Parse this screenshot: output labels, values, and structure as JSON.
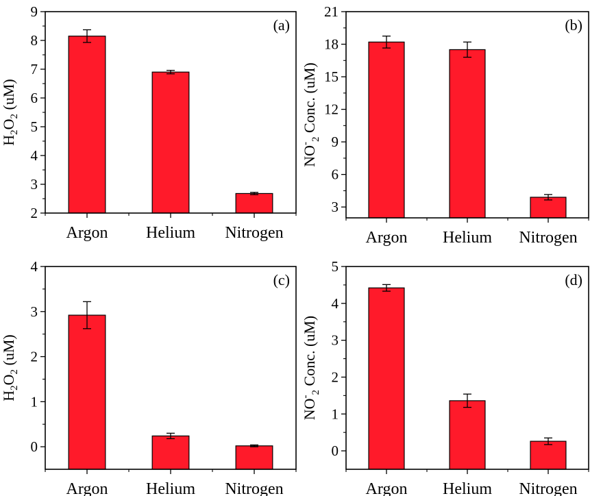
{
  "chart_data": [
    {
      "type": "bar",
      "panel_label": "(a)",
      "categories": [
        "Argon",
        "Helium",
        "Nitrogen"
      ],
      "values": [
        8.15,
        6.9,
        2.68
      ],
      "errors": [
        0.22,
        0.06,
        0.04
      ],
      "ylabel": {
        "base": "H",
        "sub1": "2",
        "mid": "O",
        "sub2": "2",
        "unit": " (uM)"
      },
      "ylim": [
        2,
        9
      ],
      "yticks": [
        2,
        3,
        4,
        5,
        6,
        7,
        8,
        9
      ],
      "bar_color": "#ff1a2a",
      "grid": false
    },
    {
      "type": "bar",
      "panel_label": "(b)",
      "categories": [
        "Argon",
        "Helium",
        "Nitrogen"
      ],
      "values": [
        18.2,
        17.5,
        3.9
      ],
      "errors": [
        0.55,
        0.7,
        0.25
      ],
      "ylabel": {
        "base": "NO",
        "sub1": "2",
        "sup": "-",
        "unit": " Conc. (uM)"
      },
      "ylim": [
        2,
        21
      ],
      "yticks": [
        3,
        6,
        9,
        12,
        15,
        18,
        21
      ],
      "bar_color": "#ff1a2a",
      "grid": false
    },
    {
      "type": "bar",
      "panel_label": "(c)",
      "categories": [
        "Argon",
        "Helium",
        "Nitrogen"
      ],
      "values": [
        2.92,
        0.24,
        0.02
      ],
      "errors": [
        0.3,
        0.06,
        0.02
      ],
      "ylabel": {
        "base": "H",
        "sub1": "2",
        "mid": "O",
        "sub2": "2",
        "unit": " (uM)"
      },
      "ylim": [
        -0.5,
        4
      ],
      "yticks": [
        0,
        1,
        2,
        3,
        4
      ],
      "bar_color": "#ff1a2a",
      "grid": false
    },
    {
      "type": "bar",
      "panel_label": "(d)",
      "categories": [
        "Argon",
        "Helium",
        "Nitrogen"
      ],
      "values": [
        4.42,
        1.36,
        0.26
      ],
      "errors": [
        0.09,
        0.18,
        0.09
      ],
      "ylabel": {
        "base": "NO",
        "sub1": "2",
        "sup": "-",
        "unit": " Conc. (uM)"
      },
      "ylim": [
        -0.5,
        5
      ],
      "yticks": [
        0,
        1,
        2,
        3,
        4,
        5
      ],
      "bar_color": "#ff1a2a",
      "grid": false
    }
  ]
}
